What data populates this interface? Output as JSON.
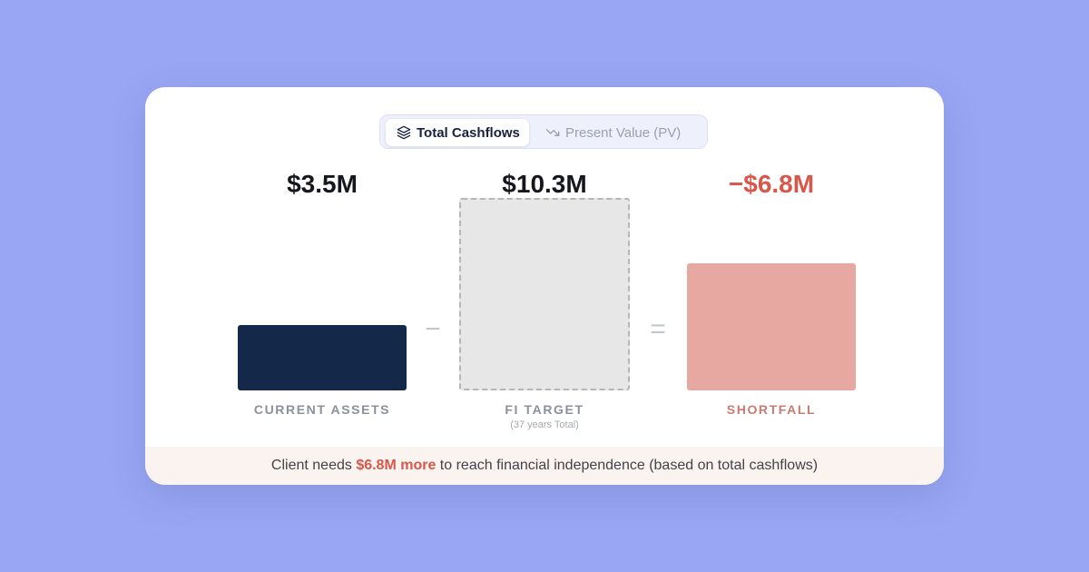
{
  "tabs": [
    {
      "label": "Total Cashflows",
      "icon": "layers-icon",
      "active": true
    },
    {
      "label": "Present Value (PV)",
      "icon": "trend-down-icon",
      "active": false
    }
  ],
  "colors": {
    "page_bg": "#99a6f3",
    "assets": "#142849",
    "target_fill": "#e7e7e8",
    "target_border": "#b6b6b6",
    "shortfall": "#e6a8a1",
    "shortfall_text": "#d9574a",
    "shortfall_label": "#c97b72"
  },
  "chart_data": {
    "type": "bar",
    "categories": [
      "CURRENT ASSETS",
      "FI TARGET",
      "SHORTFALL"
    ],
    "values": [
      3.5,
      10.3,
      6.8
    ],
    "value_labels": [
      "$3.5M",
      "$10.3M",
      "−$6.8M"
    ],
    "sublabels": [
      "",
      "(37 years Total)",
      ""
    ],
    "operators": [
      "−",
      "="
    ],
    "unit": "$M"
  },
  "footer": {
    "prefix": "Client needs ",
    "highlight": "$6.8M more",
    "suffix": " to reach financial independence (based on total cashflows)"
  }
}
